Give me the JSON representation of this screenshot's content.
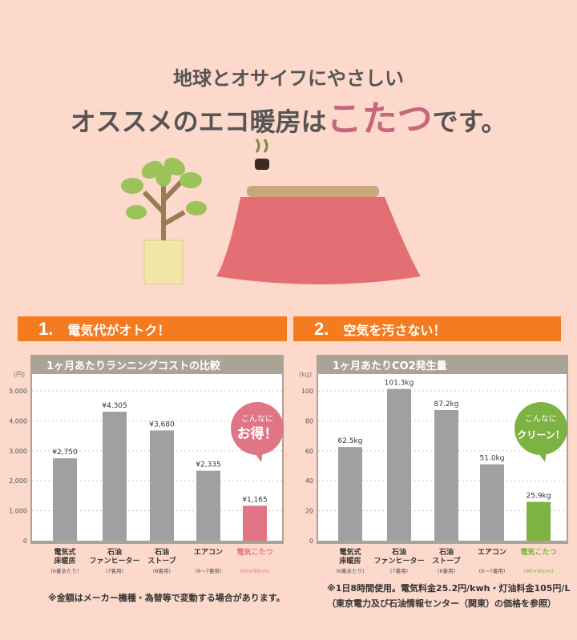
{
  "headline": {
    "line1": "地球とオサイフにやさしい",
    "line2_pre": "オススメのエコ暖房は",
    "line2_highlight": "こたつ",
    "line2_post": "です。"
  },
  "sections": [
    {
      "num": "1.",
      "label": "電気代がオトク！"
    },
    {
      "num": "2.",
      "label": "空気を汚さない！"
    }
  ],
  "colors": {
    "background": "#fcd9cb",
    "section": "#f47b20",
    "bar": "#a0a0a0",
    "highlight_pink": "#e07585",
    "highlight_green": "#7cb342",
    "frame": "#aaa396"
  },
  "chart_data": [
    {
      "type": "bar",
      "title": "1ヶ月あたりランニングコストの比較",
      "unit": "(円)",
      "ylim": [
        0,
        5000
      ],
      "yticks": [
        "0",
        "1,000",
        "2,000",
        "3,000",
        "4,000",
        "5,000"
      ],
      "grid": true,
      "categories": [
        {
          "name": [
            "電気式",
            "床暖房"
          ],
          "sub": "(6畳あたり)"
        },
        {
          "name": [
            "石油",
            "ファンヒーター"
          ],
          "sub": "(7畳用)"
        },
        {
          "name": [
            "石油",
            "ストーブ"
          ],
          "sub": "(8畳用)"
        },
        {
          "name": [
            "エアコン"
          ],
          "sub": "(6〜7畳用)"
        },
        {
          "name": [
            "電気こたつ"
          ],
          "sub": "(90×90cm)"
        }
      ],
      "values": [
        2750,
        4305,
        3680,
        2335,
        1165
      ],
      "labels": [
        "¥2,750",
        "¥4,305",
        "¥3,680",
        "¥2,335",
        "¥1,165"
      ],
      "callout": [
        "こんなに",
        "お得！"
      ],
      "highlight_color": "#e07585"
    },
    {
      "type": "bar",
      "title": "1ヶ月あたりCO2発生量",
      "unit": "(kg)",
      "ylim": [
        0,
        100
      ],
      "yticks": [
        "0",
        "20",
        "40",
        "60",
        "80",
        "100"
      ],
      "grid": true,
      "categories": [
        {
          "name": [
            "電気式",
            "床暖房"
          ],
          "sub": "(6畳あたり)"
        },
        {
          "name": [
            "石油",
            "ファンヒーター"
          ],
          "sub": "(7畳用)"
        },
        {
          "name": [
            "石油",
            "ストーブ"
          ],
          "sub": "(8畳用)"
        },
        {
          "name": [
            "エアコン"
          ],
          "sub": "(6〜7畳用)"
        },
        {
          "name": [
            "電気こたつ"
          ],
          "sub": "(90×90cm)"
        }
      ],
      "values": [
        62.5,
        101.3,
        87.2,
        51.0,
        25.9
      ],
      "labels": [
        "62.5kg",
        "101.3kg",
        "87.2kg",
        "51.0kg",
        "25.9kg"
      ],
      "callout": [
        "こんなに",
        "クリーン！"
      ],
      "highlight_color": "#7cb342"
    }
  ],
  "notes": {
    "left": "※金額はメーカー機種・為替等で変動する場合があります。",
    "right1": "※1日8時間使用。電気料金25.2円/kwh・灯油料金105円/L",
    "right2": "（東京電力及び石油情報センター（関東）の価格を参照）"
  }
}
